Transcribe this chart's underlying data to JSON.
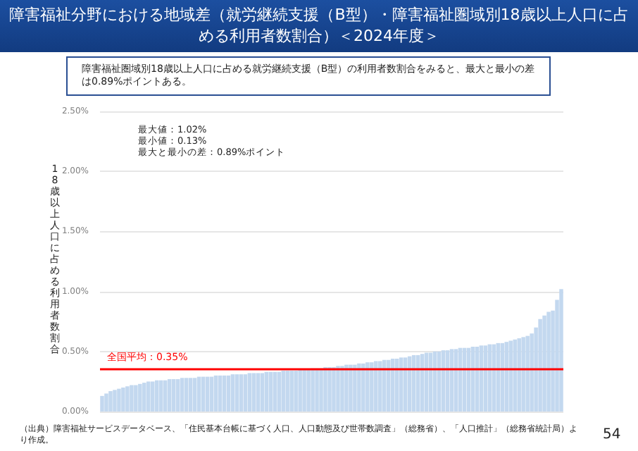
{
  "chart_data": {
    "type": "bar",
    "title": "障害福祉分野における地域差（就労継続支援（B型）・障害福祉圏域別18歳以上人口に占める利用者数割合）＜2024年度＞",
    "ylabel": "18歳以上人口に占める利用者数割合",
    "annotations": [
      "障害福祉圏域別18歳以上人口に占める就労継続支援（B型）の利用者数割合をみると、最大と最小の差は0.89%ポイントある。",
      "最大値：1.02%\n最小値：0.13%\n最大と最小の差：0.89%ポイント",
      "（出典）障害福祉サービスデータベース、「住民基本台帳に基づく人口、人口動態及び世帯数調査」（総務省）、「人口推計」（総務省統計局）より作成。",
      "54"
    ],
    "categories": [
      null,
      null,
      null,
      null,
      null,
      null,
      null,
      null,
      null,
      null,
      null,
      null,
      null,
      null,
      null,
      null,
      null,
      null,
      null,
      null,
      null,
      null,
      null,
      null,
      null,
      null,
      null,
      null,
      null,
      null,
      null,
      null,
      null,
      null,
      null,
      null,
      null,
      null,
      null,
      null,
      null,
      null,
      null,
      null,
      null,
      null,
      null,
      null,
      null,
      null,
      null,
      null,
      null,
      null,
      null,
      null,
      null,
      null,
      null,
      null,
      null,
      null,
      null,
      null,
      null,
      null,
      null,
      null,
      null,
      null,
      null,
      null,
      null,
      null,
      null,
      null,
      null,
      null,
      null,
      null,
      null,
      null,
      null,
      null,
      null,
      null,
      null,
      null,
      null,
      null,
      null,
      null,
      null,
      null,
      null,
      null,
      null,
      null,
      null,
      null,
      null,
      null,
      null,
      null,
      null,
      null,
      null,
      null,
      null,
      null
    ],
    "values": [
      0.13,
      0.15,
      0.17,
      0.18,
      0.19,
      0.2,
      0.21,
      0.22,
      0.22,
      0.23,
      0.24,
      0.25,
      0.25,
      0.26,
      0.26,
      0.26,
      0.27,
      0.27,
      0.27,
      0.28,
      0.28,
      0.28,
      0.28,
      0.29,
      0.29,
      0.29,
      0.29,
      0.3,
      0.3,
      0.3,
      0.3,
      0.31,
      0.31,
      0.31,
      0.31,
      0.32,
      0.32,
      0.32,
      0.32,
      0.33,
      0.33,
      0.33,
      0.33,
      0.34,
      0.34,
      0.34,
      0.34,
      0.35,
      0.35,
      0.35,
      0.36,
      0.36,
      0.36,
      0.37,
      0.37,
      0.37,
      0.38,
      0.38,
      0.39,
      0.39,
      0.39,
      0.4,
      0.4,
      0.41,
      0.41,
      0.42,
      0.42,
      0.43,
      0.43,
      0.44,
      0.44,
      0.45,
      0.45,
      0.46,
      0.47,
      0.47,
      0.48,
      0.49,
      0.49,
      0.5,
      0.5,
      0.51,
      0.51,
      0.52,
      0.52,
      0.53,
      0.53,
      0.53,
      0.54,
      0.54,
      0.55,
      0.55,
      0.56,
      0.56,
      0.57,
      0.57,
      0.58,
      0.59,
      0.6,
      0.61,
      0.62,
      0.63,
      0.65,
      0.7,
      0.77,
      0.8,
      0.83,
      0.84,
      0.93,
      1.02
    ],
    "color": "#c3d8ef",
    "ylim": [
      0,
      2.5
    ],
    "yticks": [
      {
        "value": 0,
        "label": "0.00%"
      },
      {
        "value": 0.5,
        "label": "0.50%"
      },
      {
        "value": 1,
        "label": "1.00%"
      },
      {
        "value": 1.5,
        "label": "1.50%"
      },
      {
        "value": 2,
        "label": "2.00%"
      },
      {
        "value": 2.5,
        "label": "2.50%"
      }
    ],
    "ref_lines": [
      {
        "axis": "y",
        "value": 0.35,
        "label": "全国平均：0.35%",
        "color": "#ff0000"
      }
    ],
    "grid": "y"
  }
}
